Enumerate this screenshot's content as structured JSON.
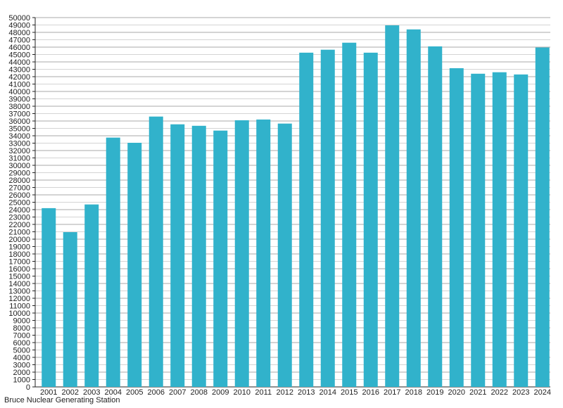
{
  "chart_data": {
    "type": "bar",
    "title": "",
    "xlabel": "",
    "ylabel": "",
    "caption": "Bruce Nuclear Generating Station",
    "categories": [
      "2001",
      "2002",
      "2003",
      "2004",
      "2005",
      "2006",
      "2007",
      "2008",
      "2009",
      "2010",
      "2011",
      "2012",
      "2013",
      "2014",
      "2015",
      "2016",
      "2017",
      "2018",
      "2019",
      "2020",
      "2021",
      "2022",
      "2023",
      "2024"
    ],
    "values": [
      24200,
      20950,
      24700,
      33750,
      33050,
      36600,
      35550,
      35350,
      34700,
      36100,
      36200,
      35650,
      45250,
      45650,
      46600,
      45250,
      48950,
      48400,
      46100,
      43150,
      42400,
      42600,
      42300,
      45950
    ],
    "ylim": [
      0,
      50000
    ],
    "ytick_step": 1000,
    "grid": true,
    "bar_color": "#31b2cb"
  }
}
